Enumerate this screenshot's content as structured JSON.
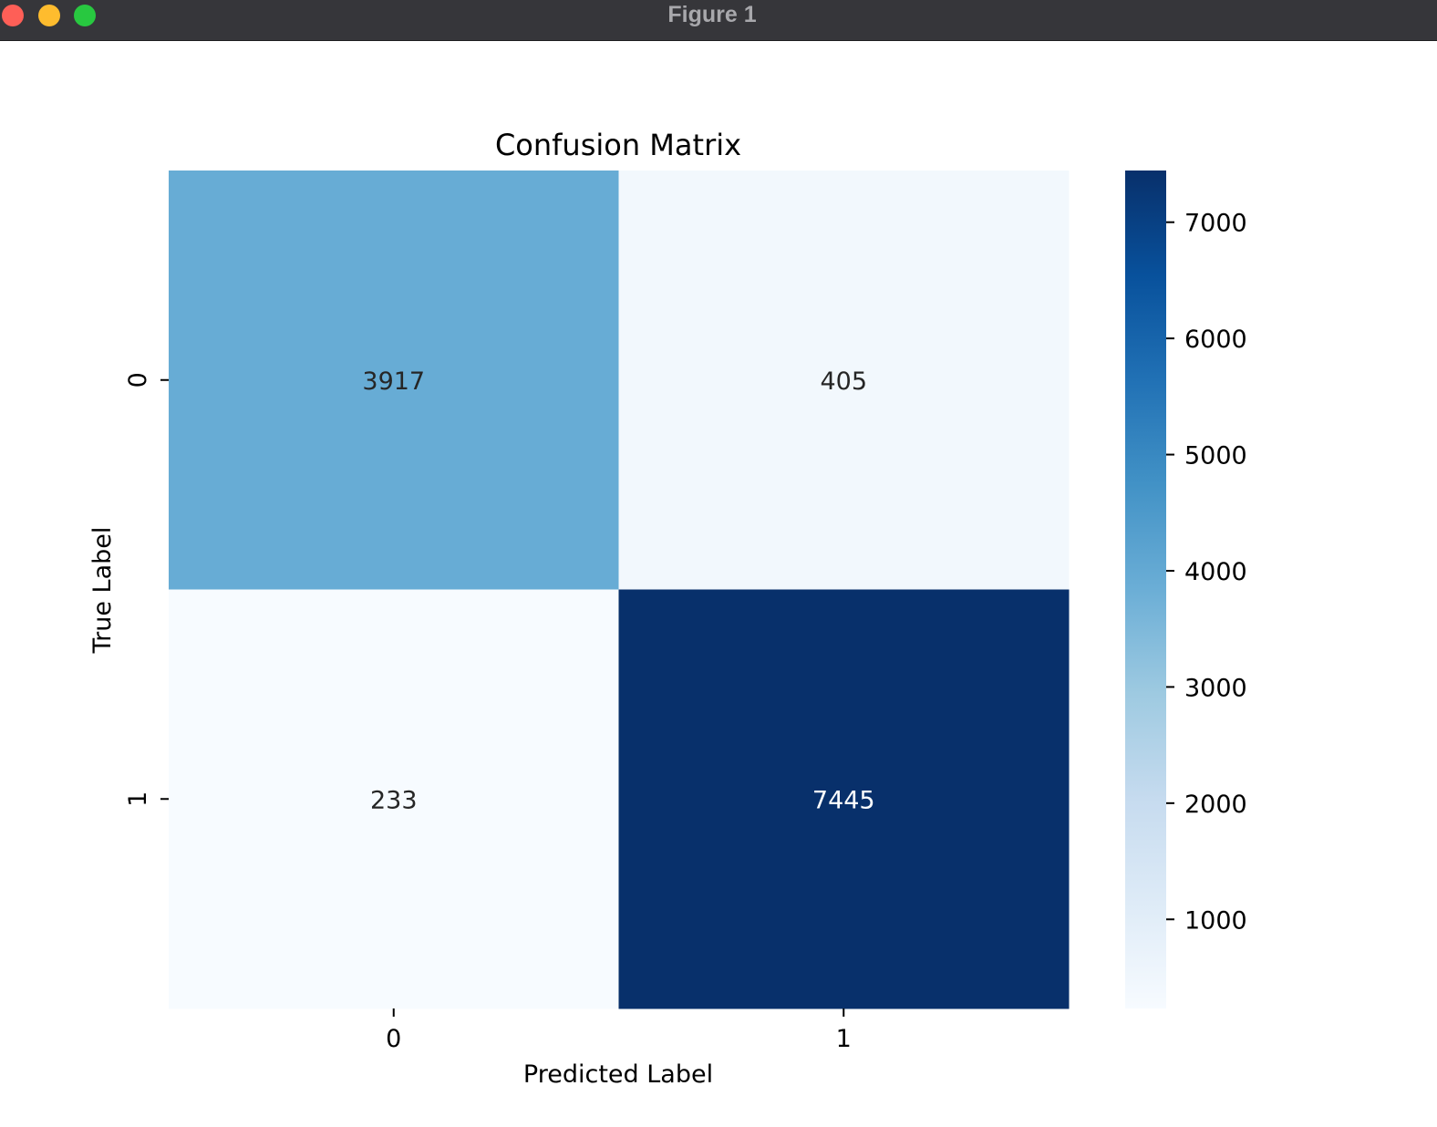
{
  "window": {
    "title": "Figure 1",
    "buttons": [
      {
        "name": "close",
        "color": "#fe5f57"
      },
      {
        "name": "minimize",
        "color": "#febc2e"
      },
      {
        "name": "zoom",
        "color": "#28c840"
      }
    ]
  },
  "chart_data": {
    "type": "heatmap",
    "title": "Confusion Matrix",
    "xlabel": "Predicted Label",
    "ylabel": "True Label",
    "x_categories": [
      "0",
      "1"
    ],
    "y_categories": [
      "0",
      "1"
    ],
    "values": [
      [
        3917,
        405
      ],
      [
        233,
        7445
      ]
    ],
    "colormap": "Blues",
    "colorbar": {
      "min": 233,
      "max": 7445,
      "ticks": [
        1000,
        2000,
        3000,
        4000,
        5000,
        6000,
        7000
      ],
      "tick_labels": [
        "1000",
        "2000",
        "3000",
        "4000",
        "5000",
        "6000",
        "7000"
      ]
    },
    "annotation_colors": {
      "light_cell": "#262626",
      "dark_cell": "#ffffff"
    }
  }
}
